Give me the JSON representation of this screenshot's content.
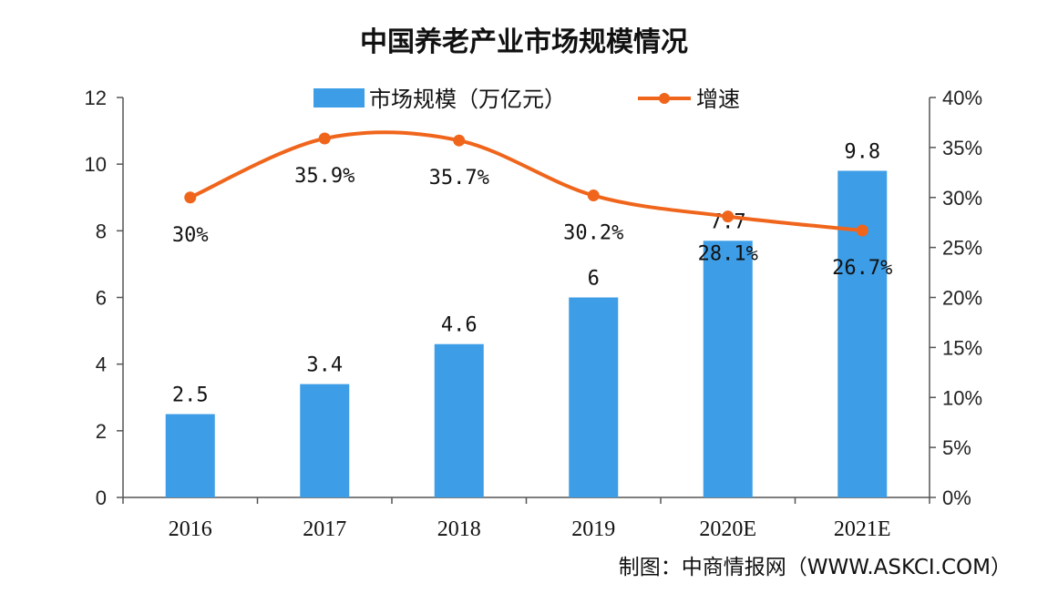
{
  "chart_data": {
    "type": "bar",
    "title": "中国养老产业市场规模情况",
    "categories": [
      "2016",
      "2017",
      "2018",
      "2019",
      "2020E",
      "2021E"
    ],
    "series": [
      {
        "name": "市场规模（万亿元）",
        "type": "bar",
        "axis": "left",
        "values": [
          2.5,
          3.4,
          4.6,
          6,
          7.7,
          9.8
        ],
        "labels": [
          "2.5",
          "3.4",
          "4.6",
          "6",
          "7.7",
          "9.8"
        ]
      },
      {
        "name": "增速",
        "type": "line",
        "axis": "right",
        "values": [
          30,
          35.9,
          35.7,
          30.2,
          28.1,
          26.7
        ],
        "labels": [
          "30%",
          "35.9%",
          "35.7%",
          "30.2%",
          "28.1%",
          "26.7%"
        ]
      }
    ],
    "y_left": {
      "min": 0,
      "max": 12,
      "ticks": [
        "0",
        "2",
        "4",
        "6",
        "8",
        "10",
        "12"
      ]
    },
    "y_right": {
      "min": 0,
      "max": 40,
      "ticks": [
        "0%",
        "5%",
        "10%",
        "15%",
        "20%",
        "25%",
        "30%",
        "35%",
        "40%"
      ]
    },
    "legend": "top",
    "grid": false
  },
  "source": "制图：中商情报网（WWW.ASKCI.COM）",
  "colors": {
    "bar": "#3d9de6",
    "line": "#f0651c",
    "axis": "#555555"
  }
}
